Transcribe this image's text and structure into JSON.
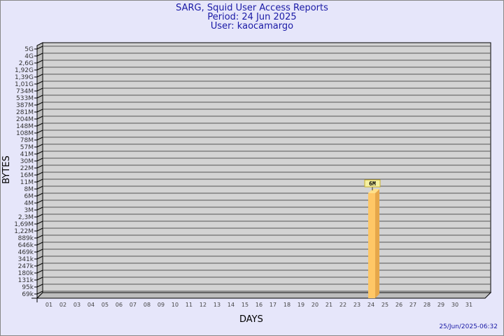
{
  "header": {
    "title": "SARG, Squid User Access Reports",
    "period": "Period: 24 Jun 2025",
    "user": "User: kaocamargo"
  },
  "footer": {
    "timestamp": "25/Jun/2025-06:32"
  },
  "colors": {
    "background": "#e6e6fa",
    "plot": "#d3d3d3",
    "bar": "#ffc766",
    "title": "#1a1aa6"
  },
  "chart_data": {
    "type": "bar",
    "xlabel": "DAYS",
    "ylabel": "BYTES",
    "yscale": "log",
    "yticks": [
      "5G",
      "4G",
      "2,6G",
      "1,92G",
      "1,39G",
      "1,01G",
      "734M",
      "533M",
      "387M",
      "281M",
      "204M",
      "148M",
      "108M",
      "78M",
      "57M",
      "41M",
      "30M",
      "22M",
      "16M",
      "11M",
      "8M",
      "6M",
      "4M",
      "3M",
      "2,3M",
      "1,69M",
      "1,22M",
      "889k",
      "646k",
      "469k",
      "341k",
      "247k",
      "180k",
      "131k",
      "95k",
      "69k"
    ],
    "categories": [
      "01",
      "02",
      "03",
      "04",
      "05",
      "06",
      "07",
      "08",
      "09",
      "10",
      "11",
      "12",
      "13",
      "14",
      "15",
      "16",
      "17",
      "18",
      "19",
      "20",
      "21",
      "22",
      "23",
      "24",
      "25",
      "26",
      "27",
      "28",
      "29",
      "30",
      "31"
    ],
    "values": [
      {
        "day": "24",
        "value": "6M",
        "label": "6M"
      }
    ],
    "grid": true
  }
}
